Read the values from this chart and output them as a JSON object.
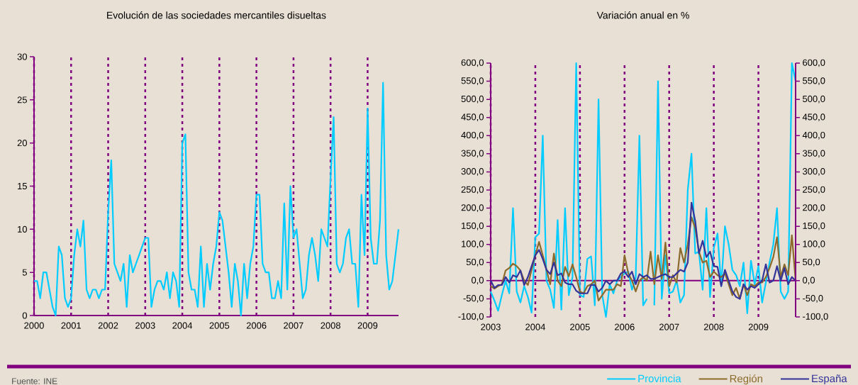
{
  "chart_data": [
    {
      "type": "line",
      "title": "Evolución de las sociedades mercantiles disueltas",
      "color": "#00ccff",
      "x": [
        "2000-01",
        "2000-02",
        "2000-03",
        "2000-04",
        "2000-05",
        "2000-06",
        "2000-07",
        "2000-08",
        "2000-09",
        "2000-10",
        "2000-11",
        "2000-12",
        "2001-01",
        "2001-02",
        "2001-03",
        "2001-04",
        "2001-05",
        "2001-06",
        "2001-07",
        "2001-08",
        "2001-09",
        "2001-10",
        "2001-11",
        "2001-12",
        "2002-01",
        "2002-02",
        "2002-03",
        "2002-04",
        "2002-05",
        "2002-06",
        "2002-07",
        "2002-08",
        "2002-09",
        "2002-10",
        "2002-11",
        "2002-12",
        "2003-01",
        "2003-02",
        "2003-03",
        "2003-04",
        "2003-05",
        "2003-06",
        "2003-07",
        "2003-08",
        "2003-09",
        "2003-10",
        "2003-11",
        "2003-12",
        "2004-01",
        "2004-02",
        "2004-03",
        "2004-04",
        "2004-05",
        "2004-06",
        "2004-07",
        "2004-08",
        "2004-09",
        "2004-10",
        "2004-11",
        "2004-12",
        "2005-01",
        "2005-02",
        "2005-03",
        "2005-04",
        "2005-05",
        "2005-06",
        "2005-07",
        "2005-08",
        "2005-09",
        "2005-10",
        "2005-11",
        "2005-12",
        "2006-01",
        "2006-02",
        "2006-03",
        "2006-04",
        "2006-05",
        "2006-06",
        "2006-07",
        "2006-08",
        "2006-09",
        "2006-10",
        "2006-11",
        "2006-12",
        "2007-01",
        "2007-02",
        "2007-03",
        "2007-04",
        "2007-05",
        "2007-06",
        "2007-07",
        "2007-08",
        "2007-09",
        "2007-10",
        "2007-11",
        "2007-12",
        "2008-01",
        "2008-02",
        "2008-03",
        "2008-04",
        "2008-05",
        "2008-06",
        "2008-07",
        "2008-08",
        "2008-09",
        "2008-10",
        "2008-11",
        "2008-12",
        "2009-01",
        "2009-02",
        "2009-03",
        "2009-04",
        "2009-05",
        "2009-06",
        "2009-07",
        "2009-08",
        "2009-09",
        "2009-10",
        "2009-11"
      ],
      "values": [
        4,
        4,
        2,
        5,
        5,
        3,
        1,
        0,
        8,
        7,
        2,
        1,
        2,
        7,
        10,
        8,
        11,
        3,
        2,
        3,
        3,
        2,
        3,
        3,
        12,
        18,
        6,
        5,
        4,
        6,
        1,
        7,
        5,
        6,
        7,
        8,
        9,
        9,
        1,
        3,
        4,
        4,
        3,
        5,
        2,
        5,
        4,
        1,
        20,
        21,
        5,
        3,
        3,
        1,
        8,
        1,
        6,
        3,
        6,
        8,
        12,
        11,
        8,
        5,
        1,
        6,
        4,
        0,
        6,
        2,
        6,
        8,
        14,
        14,
        6,
        5,
        5,
        2,
        2,
        4,
        2,
        13,
        3,
        15,
        9,
        10,
        6,
        2,
        3,
        7,
        9,
        7,
        4,
        10,
        9,
        8,
        16,
        23,
        6,
        5,
        6,
        9,
        10,
        6,
        6,
        1,
        14,
        7,
        24,
        9,
        6,
        6,
        11,
        27,
        7,
        3,
        4,
        7,
        10
      ],
      "xlim": [
        "2000-01",
        "2009-11"
      ],
      "xticks": [
        "2000",
        "2001",
        "2002",
        "2003",
        "2004",
        "2005",
        "2006",
        "2007",
        "2008",
        "2009"
      ],
      "ylim": [
        0,
        30
      ],
      "yticks": [
        0,
        5,
        10,
        15,
        20,
        25,
        30
      ],
      "grid": "x",
      "annotations": [
        "Fuente: INE"
      ]
    },
    {
      "type": "line",
      "title": "Variación anual en %",
      "x": [
        "2003-01",
        "2003-02",
        "2003-03",
        "2003-04",
        "2003-05",
        "2003-06",
        "2003-07",
        "2003-08",
        "2003-09",
        "2003-10",
        "2003-11",
        "2003-12",
        "2004-01",
        "2004-02",
        "2004-03",
        "2004-04",
        "2004-05",
        "2004-06",
        "2004-07",
        "2004-08",
        "2004-09",
        "2004-10",
        "2004-11",
        "2004-12",
        "2005-01",
        "2005-02",
        "2005-03",
        "2005-04",
        "2005-05",
        "2005-06",
        "2005-07",
        "2005-08",
        "2005-09",
        "2005-10",
        "2005-11",
        "2005-12",
        "2006-01",
        "2006-02",
        "2006-03",
        "2006-04",
        "2006-05",
        "2006-06",
        "2006-07",
        "2006-08",
        "2006-09",
        "2006-10",
        "2006-11",
        "2006-12",
        "2007-01",
        "2007-02",
        "2007-03",
        "2007-04",
        "2007-05",
        "2007-06",
        "2007-07",
        "2007-08",
        "2007-09",
        "2007-10",
        "2007-11",
        "2007-12",
        "2008-01",
        "2008-02",
        "2008-03",
        "2008-04",
        "2008-05",
        "2008-06",
        "2008-07",
        "2008-08",
        "2008-09",
        "2008-10",
        "2008-11",
        "2008-12",
        "2009-01",
        "2009-02",
        "2009-03",
        "2009-04",
        "2009-05",
        "2009-06",
        "2009-07",
        "2009-08",
        "2009-09",
        "2009-10",
        "2009-11"
      ],
      "series": [
        {
          "name": "Provincia",
          "color": "#00ccff",
          "values": [
            -30,
            -55,
            -83,
            -40,
            0,
            -35,
            200,
            -30,
            -60,
            -15,
            -45,
            -88,
            120,
            130,
            400,
            0,
            -25,
            -75,
            167,
            -80,
            200,
            -40,
            10,
            600,
            -40,
            -45,
            60,
            67,
            -68,
            500,
            -40,
            -100,
            -10,
            -35,
            0,
            10,
            20,
            25,
            -25,
            10,
            400,
            -68,
            -50,
            null,
            -68,
            550,
            -50,
            70,
            -35,
            -30,
            0,
            -60,
            -40,
            250,
            350,
            75,
            80,
            -25,
            200,
            -45,
            90,
            130,
            -15,
            150,
            100,
            30,
            15,
            -15,
            50,
            -90,
            55,
            -10,
            40,
            -60,
            -5,
            50,
            100,
            200,
            -30,
            -50,
            -30,
            600,
            550
          ]
        },
        {
          "name": "Región",
          "color": "#8b6a2b",
          "values": [
            -15,
            -22,
            -15,
            -10,
            28,
            35,
            47,
            40,
            28,
            0,
            -12,
            30,
            70,
            107,
            70,
            30,
            -10,
            75,
            0,
            -15,
            38,
            12,
            45,
            10,
            -30,
            -35,
            -15,
            -10,
            0,
            -55,
            -40,
            -25,
            -25,
            -25,
            -10,
            -15,
            70,
            20,
            0,
            -30,
            0,
            10,
            0,
            80,
            -10,
            70,
            5,
            105,
            -15,
            15,
            -5,
            90,
            50,
            100,
            175,
            145,
            80,
            50,
            55,
            10,
            25,
            15,
            10,
            20,
            -10,
            -40,
            -20,
            -50,
            -10,
            -40,
            -10,
            -15,
            -5,
            -5,
            10,
            35,
            65,
            120,
            10,
            45,
            15,
            125,
            0
          ]
        },
        {
          "name": "España",
          "color": "#333399",
          "values": [
            0,
            -20,
            -12,
            -12,
            10,
            -5,
            15,
            10,
            28,
            -12,
            10,
            40,
            70,
            85,
            60,
            30,
            18,
            50,
            15,
            20,
            -5,
            -10,
            -10,
            -28,
            -35,
            -35,
            -35,
            -12,
            -12,
            -30,
            -20,
            0,
            -10,
            0,
            0,
            20,
            25,
            10,
            25,
            -10,
            18,
            10,
            15,
            5,
            5,
            10,
            15,
            18,
            10,
            10,
            20,
            30,
            25,
            50,
            215,
            165,
            75,
            110,
            65,
            80,
            40,
            38,
            -15,
            30,
            0,
            -30,
            -45,
            -50,
            -10,
            -25,
            -15,
            -20,
            -10,
            0,
            45,
            -5,
            0,
            40,
            0,
            35,
            -10,
            10,
            0
          ]
        }
      ],
      "xlim": [
        "2003-01",
        "2009-11"
      ],
      "xticks": [
        "2003",
        "2004",
        "2005",
        "2006",
        "2007",
        "2008",
        "2009"
      ],
      "ylim": [
        -100,
        600
      ],
      "yticks": [
        {
          "value": -100,
          "label": "-100,0"
        },
        {
          "value": -50,
          "label": "-50,0"
        },
        {
          "value": 0,
          "label": "0,0"
        },
        {
          "value": 50,
          "label": "50,0"
        },
        {
          "value": 100,
          "label": "100,0"
        },
        {
          "value": 150,
          "label": "150,0"
        },
        {
          "value": 200,
          "label": "200,0"
        },
        {
          "value": 250,
          "label": "250,0"
        },
        {
          "value": 300,
          "label": "300,0"
        },
        {
          "value": 350,
          "label": "350,0"
        },
        {
          "value": 400,
          "label": "400,0"
        },
        {
          "value": 450,
          "label": "450,0"
        },
        {
          "value": 500,
          "label": "500,0"
        },
        {
          "value": 550,
          "label": "550,0"
        },
        {
          "value": 600,
          "label": "600,0"
        }
      ],
      "y2lim": [
        -100,
        600
      ],
      "y2ticks": [
        {
          "value": -100,
          "label": "-100,0"
        },
        {
          "value": -50,
          "label": "-50,0"
        },
        {
          "value": 0,
          "label": "0,0"
        },
        {
          "value": 50,
          "label": "50,0"
        },
        {
          "value": 100,
          "label": "100,0"
        },
        {
          "value": 150,
          "label": "150,0"
        },
        {
          "value": 200,
          "label": "200,0"
        },
        {
          "value": 250,
          "label": "250,0"
        },
        {
          "value": 300,
          "label": "300,0"
        },
        {
          "value": 350,
          "label": "350,0"
        },
        {
          "value": 400,
          "label": "400,0"
        },
        {
          "value": 450,
          "label": "450,0"
        },
        {
          "value": 500,
          "label": "500,0"
        },
        {
          "value": 550,
          "label": "550,0"
        },
        {
          "value": 600,
          "label": "600,0"
        }
      ],
      "ref_lines": [
        {
          "axis": "y",
          "value": 0,
          "color": "#800080"
        }
      ],
      "grid": "x",
      "legend": "bottom right"
    }
  ]
}
